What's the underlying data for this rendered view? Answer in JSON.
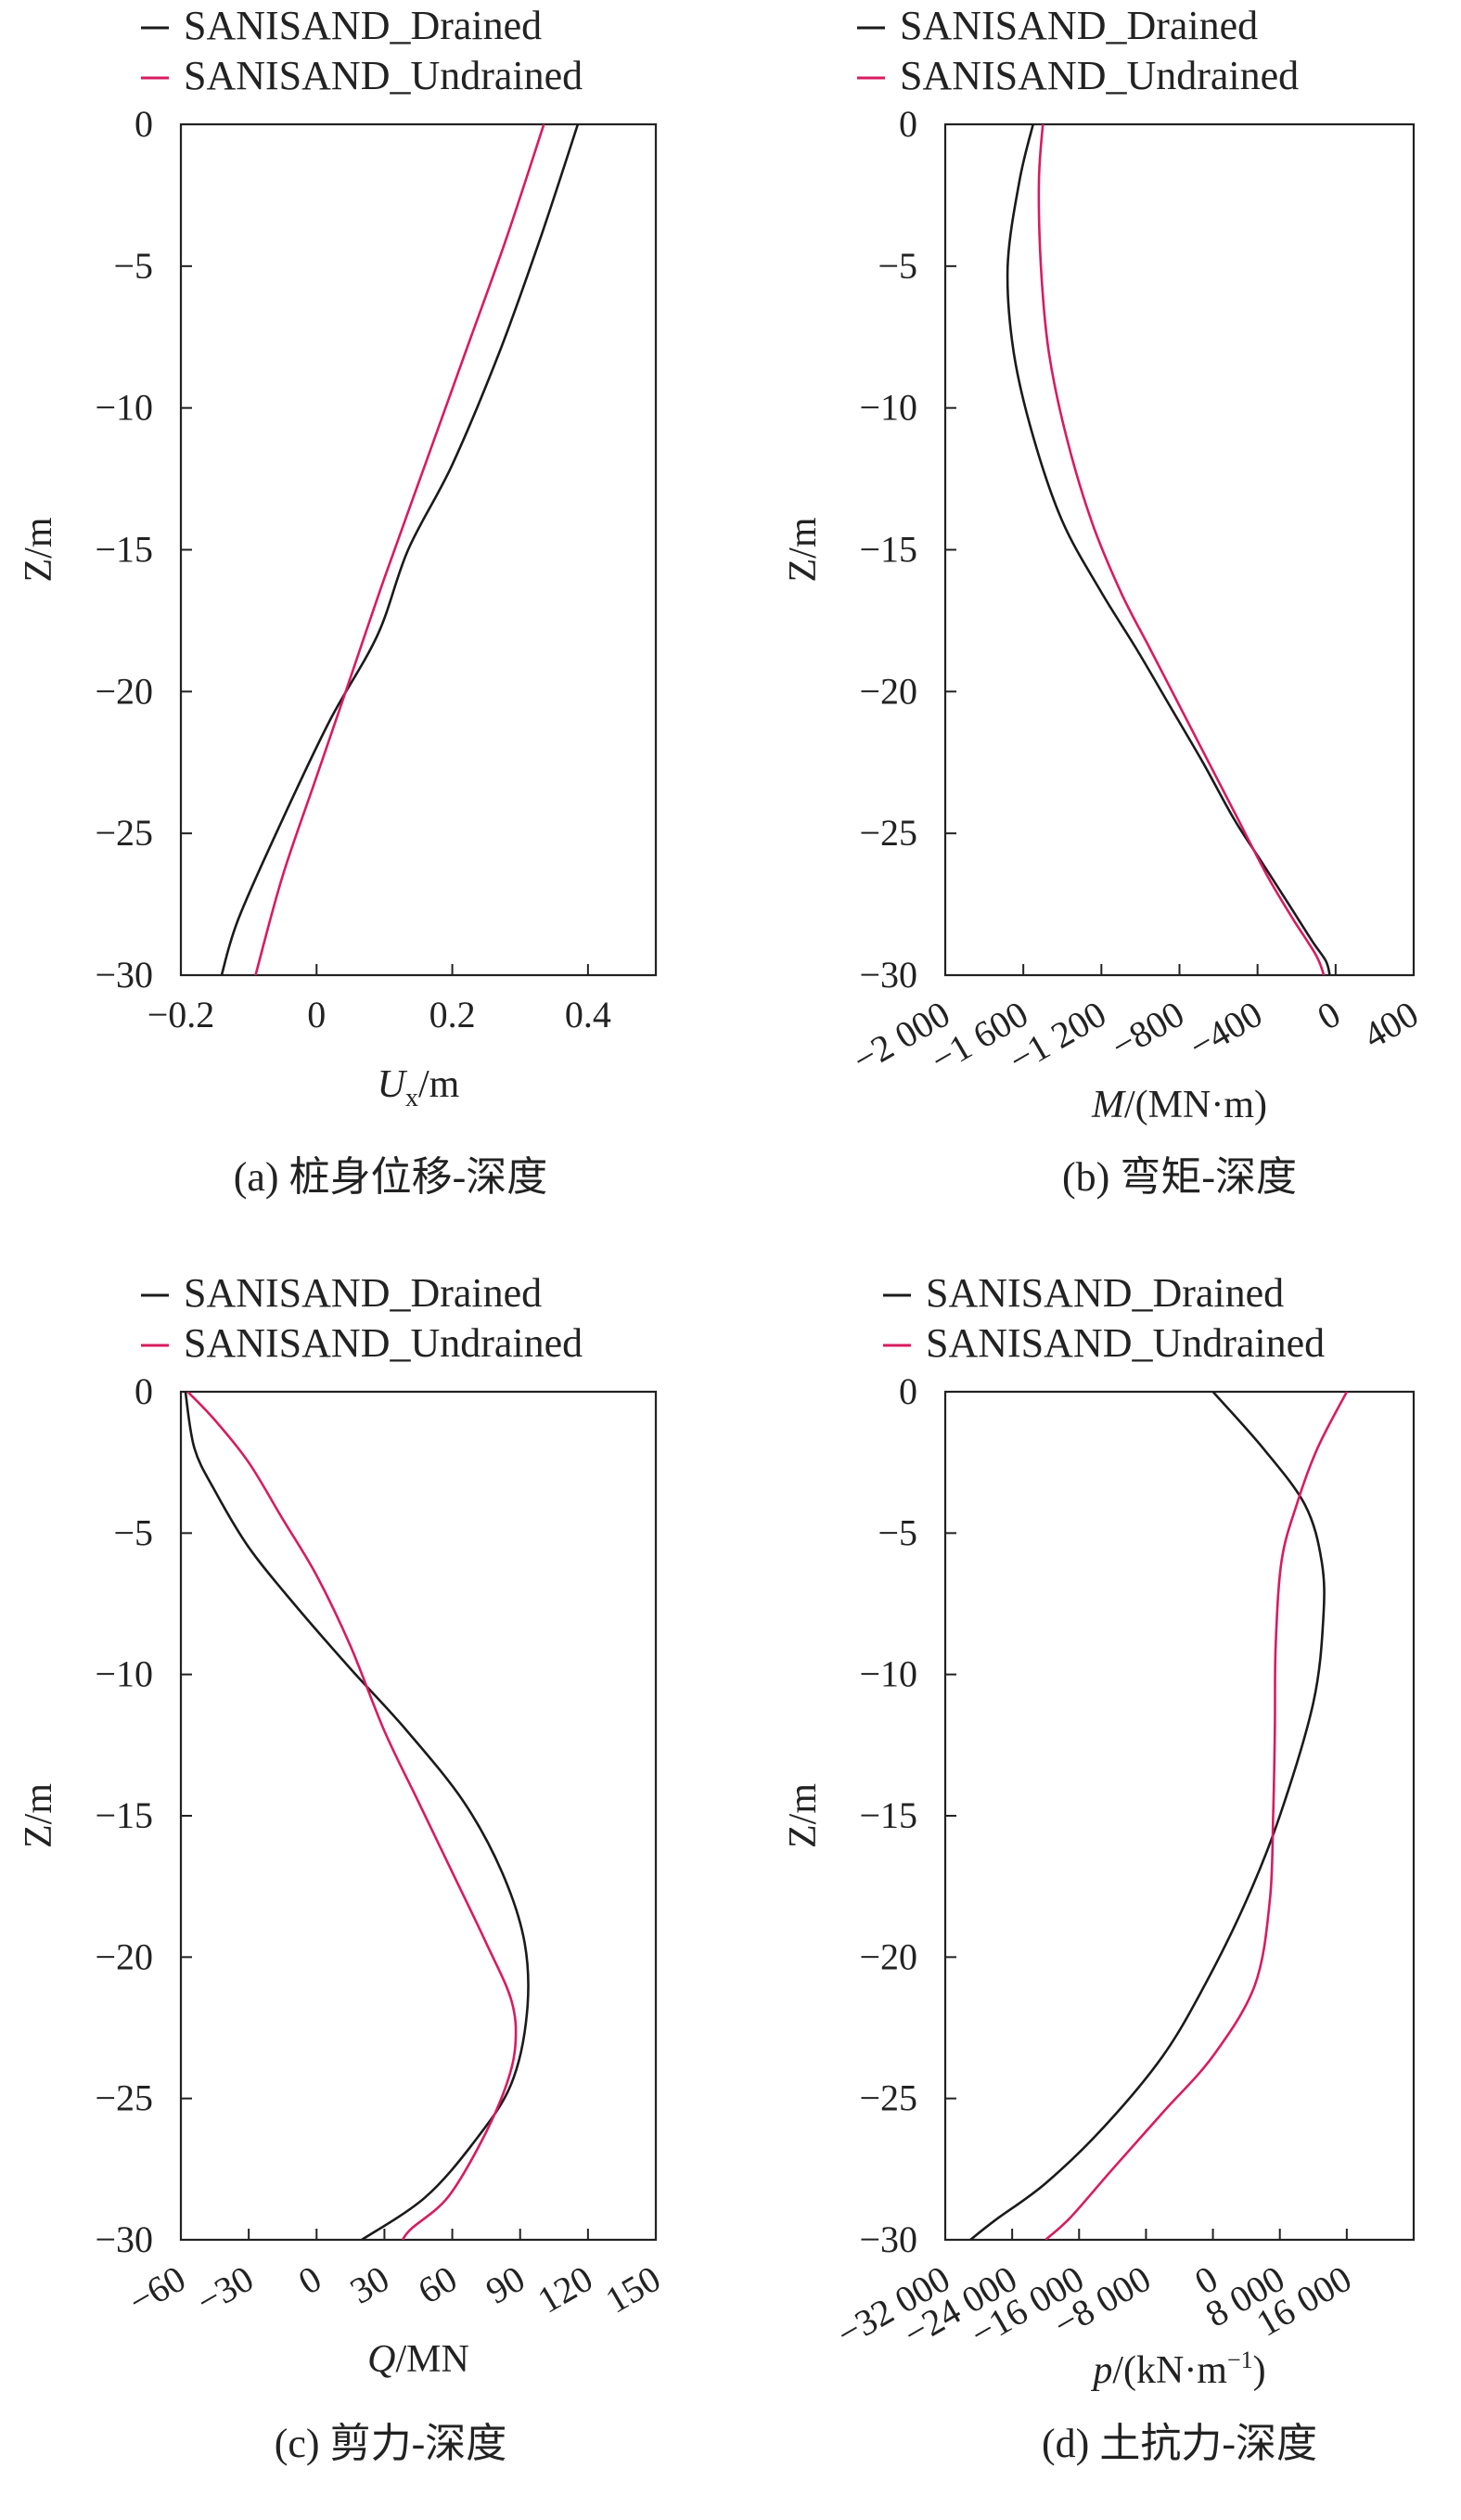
{
  "figure": {
    "colors": {
      "drained": "#1a1a1a",
      "undrained": "#d81b60",
      "axis": "#222222"
    }
  },
  "chart_data": [
    {
      "id": "a",
      "type": "line",
      "caption": "(a) 桩身位移-深度",
      "ylabel": "Z/m",
      "xlabel": {
        "symbol": "U",
        "sub": "x",
        "unit": "/m"
      },
      "xlim": [
        -0.2,
        0.5
      ],
      "ylim": [
        -30,
        0
      ],
      "xticks": [
        -0.2,
        0,
        0.2,
        0.4
      ],
      "xtick_labels": [
        "−0.2",
        "0",
        "0.2",
        "0.4"
      ],
      "yticks": [
        0,
        -5,
        -10,
        -15,
        -20,
        -25,
        -30
      ],
      "ytick_labels": [
        "0",
        "−5",
        "−10",
        "−15",
        "−20",
        "−25",
        "−30"
      ],
      "rotate_xticks": false,
      "legend_position": "top-left",
      "series": [
        {
          "name": "SANISAND_Drained",
          "color": "#1a1a1a",
          "x": [
            0.385,
            0.33,
            0.27,
            0.2,
            0.135,
            0.09,
            0.02,
            -0.05,
            -0.115,
            -0.14
          ],
          "y": [
            0,
            -4,
            -8,
            -12,
            -15,
            -18,
            -21,
            -24.5,
            -28,
            -30
          ]
        },
        {
          "name": "SANISAND_Undrained",
          "color": "#d81b60",
          "x": [
            0.335,
            0.28,
            0.22,
            0.16,
            0.1,
            0.05,
            0.0,
            -0.05,
            -0.09
          ],
          "y": [
            0,
            -4,
            -8,
            -12,
            -16,
            -19.5,
            -23,
            -26.5,
            -30
          ]
        }
      ]
    },
    {
      "id": "b",
      "type": "line",
      "caption": "(b) 弯矩-深度",
      "ylabel": "Z/m",
      "xlabel": {
        "symbol": "M",
        "sub": "",
        "unit": "/(MN·m)"
      },
      "xlim": [
        -2000,
        400
      ],
      "ylim": [
        -30,
        0
      ],
      "xticks": [
        -2000,
        -1600,
        -1200,
        -800,
        -400,
        0,
        400
      ],
      "xtick_labels": [
        "−2 000",
        "−1 600",
        "−1 200",
        "−800",
        "−400",
        "0",
        "400"
      ],
      "yticks": [
        0,
        -5,
        -10,
        -15,
        -20,
        -25,
        -30
      ],
      "ytick_labels": [
        "0",
        "−5",
        "−10",
        "−15",
        "−20",
        "−25",
        "−30"
      ],
      "rotate_xticks": true,
      "legend_position": "top-left",
      "series": [
        {
          "name": "SANISAND_Drained",
          "color": "#1a1a1a",
          "x": [
            -1550,
            -1620,
            -1680,
            -1650,
            -1550,
            -1400,
            -1200,
            -1020,
            -850,
            -680,
            -520,
            -380,
            -240,
            -120,
            -50,
            -30
          ],
          "y": [
            0,
            -2,
            -5,
            -8,
            -11,
            -14,
            -16.5,
            -18.5,
            -20.5,
            -22.5,
            -24.5,
            -26,
            -27.5,
            -28.8,
            -29.5,
            -30
          ]
        },
        {
          "name": "SANISAND_Undrained",
          "color": "#d81b60",
          "x": [
            -1500,
            -1520,
            -1510,
            -1470,
            -1380,
            -1250,
            -1100,
            -950,
            -800,
            -650,
            -500,
            -350,
            -220,
            -100,
            -60
          ],
          "y": [
            0,
            -2,
            -5,
            -8,
            -11,
            -14,
            -16.5,
            -18.5,
            -20.5,
            -22.5,
            -24.5,
            -26.5,
            -28,
            -29.3,
            -30
          ]
        }
      ]
    },
    {
      "id": "c",
      "type": "line",
      "caption": "(c) 剪力-深度",
      "ylabel": "Z/m",
      "xlabel": {
        "symbol": "Q",
        "sub": "",
        "unit": "/MN"
      },
      "xlim": [
        -60,
        150
      ],
      "ylim": [
        -30,
        0
      ],
      "xticks": [
        -60,
        -30,
        0,
        30,
        60,
        90,
        120,
        150
      ],
      "xtick_labels": [
        "−60",
        "−30",
        "0",
        "30",
        "60",
        "90",
        "120",
        "150"
      ],
      "yticks": [
        0,
        -5,
        -10,
        -15,
        -20,
        -25,
        -30
      ],
      "ytick_labels": [
        "0",
        "−5",
        "−10",
        "−15",
        "−20",
        "−25",
        "−30"
      ],
      "rotate_xticks": true,
      "legend_position": "top-left",
      "series": [
        {
          "name": "SANISAND_Drained",
          "color": "#1a1a1a",
          "x": [
            -58,
            -54,
            -45,
            -30,
            -10,
            15,
            40,
            65,
            82,
            92,
            93,
            86,
            70,
            48,
            20
          ],
          "y": [
            0,
            -2,
            -3.5,
            -5.5,
            -7.5,
            -9.8,
            -12,
            -14.5,
            -17,
            -19.5,
            -22,
            -24.5,
            -26.5,
            -28.5,
            -30
          ]
        },
        {
          "name": "SANISAND_Undrained",
          "color": "#d81b60",
          "x": [
            -57,
            -45,
            -30,
            -15,
            0,
            15,
            30,
            45,
            60,
            75,
            86,
            88,
            84,
            73,
            58,
            42,
            38
          ],
          "y": [
            0,
            -1,
            -2.5,
            -4.5,
            -6.5,
            -9,
            -12,
            -14.5,
            -17,
            -19.5,
            -21.5,
            -23,
            -24.5,
            -26.5,
            -28.5,
            -29.6,
            -30
          ]
        }
      ]
    },
    {
      "id": "d",
      "type": "line",
      "caption": "(d) 土抗力-深度",
      "ylabel": "Z/m",
      "xlabel": {
        "symbol": "p",
        "sub": "",
        "unit": "/(kN·m",
        "sup": "−1",
        "tail": ")"
      },
      "xlim": [
        -32000,
        24000
      ],
      "ylim": [
        -30,
        0
      ],
      "xticks": [
        -32000,
        -24000,
        -16000,
        -8000,
        0,
        8000,
        16000
      ],
      "xtick_labels": [
        "−32 000",
        "−24 000",
        "−16 000",
        "−8 000",
        "0",
        "8 000",
        "16 000"
      ],
      "yticks": [
        0,
        -5,
        -10,
        -15,
        -20,
        -25,
        -30
      ],
      "ytick_labels": [
        "0",
        "−5",
        "−10",
        "−15",
        "−20",
        "−25",
        "−30"
      ],
      "rotate_xticks": true,
      "legend_position": "top-left",
      "series": [
        {
          "name": "SANISAND_Drained",
          "color": "#1a1a1a",
          "x": [
            0,
            6000,
            11000,
            13000,
            13200,
            12000,
            8000,
            4000,
            -1000,
            -6000,
            -13000,
            -20000,
            -26000,
            -29000
          ],
          "y": [
            0,
            -2,
            -4,
            -6,
            -8,
            -11,
            -15,
            -18,
            -21,
            -23.5,
            -26,
            -28,
            -29.3,
            -30
          ]
        },
        {
          "name": "SANISAND_Undrained",
          "color": "#d81b60",
          "x": [
            16000,
            12500,
            10000,
            8200,
            7500,
            7400,
            7200,
            6800,
            5000,
            0,
            -6000,
            -12000,
            -17000,
            -20000
          ],
          "y": [
            0,
            -2,
            -4,
            -6,
            -9,
            -12,
            -15,
            -18,
            -21,
            -23.5,
            -25.5,
            -27.5,
            -29.2,
            -30
          ]
        }
      ]
    }
  ]
}
